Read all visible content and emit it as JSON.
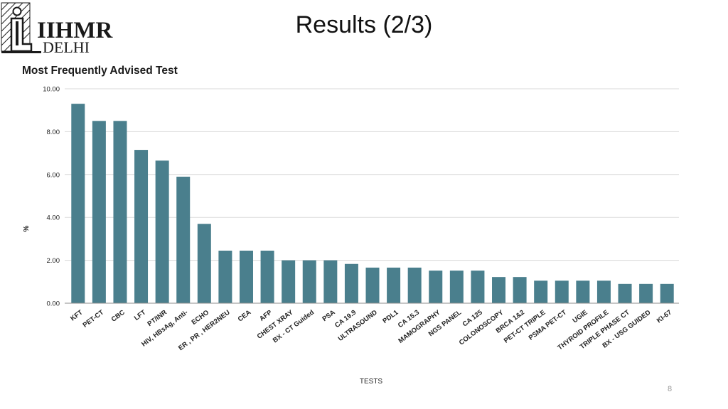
{
  "slide": {
    "logo_line1": "IIHMR",
    "logo_line2": "DELHI",
    "title": "Results (2/3)",
    "page_number": "8"
  },
  "colors": {
    "bar": "#4a7f8d",
    "grid": "#d9d9d9",
    "axis": "#8c8c8c",
    "logo": "#1a1a1a"
  },
  "icons": {
    "logo": "iihmr-emblem-icon"
  },
  "chart_data": {
    "type": "bar",
    "title": "Most Frequently Advised Test",
    "xlabel": "TESTS",
    "ylabel": "%",
    "ylim": [
      0,
      10
    ],
    "yticks": [
      "0.00",
      "2.00",
      "4.00",
      "6.00",
      "8.00",
      "10.00"
    ],
    "grid": true,
    "legend": "none",
    "categories": [
      "KFT",
      "PET-CT",
      "CBC",
      "LFT",
      "PT/INR",
      "HIV, HBsAg, Anti-",
      "ECHO",
      "ER , PR , HER2NEU",
      "CEA",
      "AFP",
      "CHEST XRAY",
      "BX - CT Guided",
      "PSA",
      "CA 19.9",
      "ULTRASOUND",
      "PDL1",
      "CA 15.3",
      "MAMOGRAPHY",
      "NGS PANEL",
      "CA 125",
      "COLONOSCOPY",
      "BRCA 1&2",
      "PET-CT TRIPLE",
      "PSMA PET-CT",
      "UGIE",
      "THYROID PROFILE",
      "TRIPLE PHASE CT",
      "BX - USG GUIDED",
      "KI-67"
    ],
    "values": [
      9.3,
      8.5,
      8.5,
      7.15,
      6.65,
      5.9,
      3.7,
      2.45,
      2.45,
      2.45,
      2.0,
      2.0,
      2.0,
      1.83,
      1.66,
      1.66,
      1.66,
      1.52,
      1.52,
      1.52,
      1.22,
      1.22,
      1.05,
      1.05,
      1.05,
      1.05,
      0.9,
      0.9,
      0.9
    ]
  }
}
